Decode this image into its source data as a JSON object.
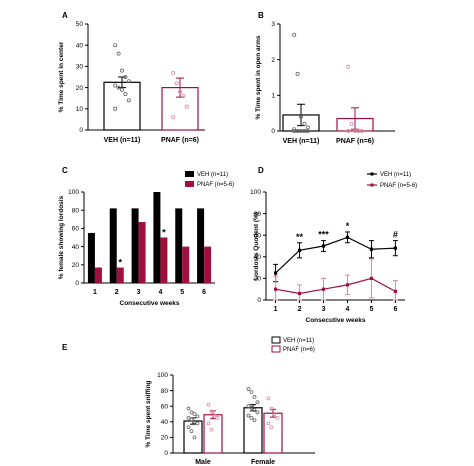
{
  "colors": {
    "veh": "#000000",
    "pnaf": "#a0103f",
    "pnaf_light": "#d98aa6",
    "dot_gray": "#666666"
  },
  "chart_data": [
    {
      "panel": "A",
      "type": "bar",
      "ylabel": "% Time spent in center",
      "ylim": [
        0,
        50
      ],
      "yticks": [
        0,
        10,
        20,
        30,
        40,
        50
      ],
      "categories": [
        "VEH (n=11)",
        "PNAF (n=6)"
      ],
      "values": [
        22.5,
        20
      ],
      "errors": [
        2.5,
        4.5
      ],
      "bar_style": [
        "open-black",
        "open-pnaf"
      ],
      "points": [
        [
          40,
          36,
          28,
          25,
          23,
          21,
          20,
          19,
          17,
          14,
          10
        ],
        [
          27,
          22,
          18,
          16,
          11,
          6
        ]
      ]
    },
    {
      "panel": "B",
      "type": "bar",
      "ylabel": "% Time spent in open arms",
      "ylim": [
        0,
        3
      ],
      "yticks": [
        0,
        1,
        2,
        3
      ],
      "categories": [
        "VEH (n=11)",
        "PNAF (n=6)"
      ],
      "values": [
        0.45,
        0.35
      ],
      "errors": [
        0.3,
        0.3
      ],
      "bar_style": [
        "open-black",
        "open-pnaf"
      ],
      "points": [
        [
          2.7,
          1.6,
          0.4,
          0.2,
          0.1,
          0.05,
          0,
          0,
          0,
          0,
          0
        ],
        [
          1.8,
          0.2,
          0,
          0,
          0,
          0
        ]
      ]
    },
    {
      "panel": "C",
      "type": "bar",
      "ylabel": "% female showing lordosis",
      "xlabel": "Consecutive weeks",
      "ylim": [
        0,
        100
      ],
      "yticks": [
        0,
        20,
        40,
        60,
        80,
        100
      ],
      "categories": [
        "1",
        "2",
        "3",
        "4",
        "5",
        "6"
      ],
      "series": [
        {
          "name": "VEH (n=11)",
          "values": [
            55,
            82,
            82,
            100,
            82,
            82
          ]
        },
        {
          "name": "PNAF (n=5-6)",
          "values": [
            17,
            17,
            67,
            50,
            40,
            40
          ]
        }
      ],
      "annotations": [
        {
          "category": "2",
          "text": "*"
        },
        {
          "category": "4",
          "text": "*"
        }
      ]
    },
    {
      "panel": "D",
      "type": "line",
      "ylabel": "Lordosis Quotient (%)",
      "xlabel": "Consecutive weeks",
      "ylim": [
        0,
        100
      ],
      "yticks": [
        0,
        20,
        40,
        60,
        80,
        100
      ],
      "x": [
        1,
        2,
        3,
        4,
        5,
        6
      ],
      "series": [
        {
          "name": "VEH (n=11)",
          "values": [
            25,
            46,
            50,
            58,
            47,
            48
          ],
          "errors": [
            8,
            7,
            5,
            5,
            8,
            7
          ]
        },
        {
          "name": "PNAF (n=5-6)",
          "values": [
            10,
            6,
            10,
            14,
            20,
            8
          ],
          "errors": [
            12,
            8,
            10,
            9,
            18,
            10
          ]
        }
      ],
      "annotations": [
        {
          "x": 2,
          "text": "**"
        },
        {
          "x": 3,
          "text": "***"
        },
        {
          "x": 4,
          "text": "*"
        },
        {
          "x": 6,
          "text": "#"
        }
      ]
    },
    {
      "panel": "E",
      "type": "bar",
      "ylabel": "% Time spent sniffing",
      "ylim": [
        0,
        100
      ],
      "yticks": [
        0,
        20,
        40,
        60,
        80,
        100
      ],
      "categories": [
        "Male",
        "Female"
      ],
      "series": [
        {
          "name": "VEH (n=11)",
          "values": [
            41,
            58
          ],
          "errors": [
            4,
            4
          ],
          "points": [
            [
              57,
              52,
              50,
              47,
              45,
              43,
              40,
              38,
              33,
              28,
              20
            ],
            [
              82,
              78,
              72,
              65,
              60,
              58,
              55,
              52,
              48,
              45,
              42
            ]
          ]
        },
        {
          "name": "PNAF (n=6)",
          "values": [
            49,
            51
          ],
          "errors": [
            5,
            5
          ],
          "points": [
            [
              62,
              53,
              48,
              45,
              38,
              30
            ],
            [
              70,
              57,
              50,
              45,
              38,
              33
            ]
          ]
        }
      ]
    }
  ]
}
